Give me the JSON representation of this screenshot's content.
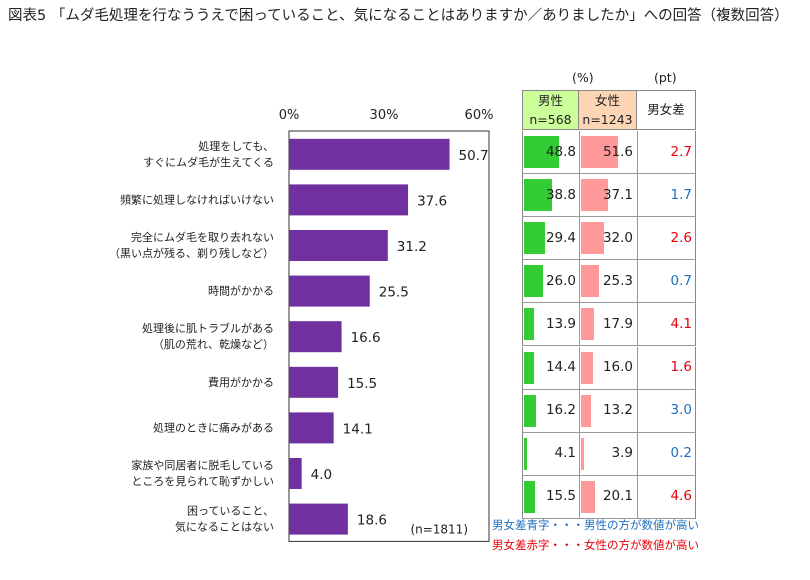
{
  "title": "図表5 「ムダ毛処理を行なううえで困っていること、気になることはありますか／ありましたか」への回答（複数回答）",
  "chart_data": [
    {
      "type": "bar",
      "orientation": "horizontal",
      "categories": [
        [
          "処理をしても、",
          "すぐにムダ毛が生えてくる"
        ],
        [
          "頻繁に処理しなければいけない"
        ],
        [
          "完全にムダ毛を取り去れない",
          "（黒い点が残る、剃り残しなど）"
        ],
        [
          "時間がかかる"
        ],
        [
          "処理後に肌トラブルがある",
          "（肌の荒れ、乾燥など）"
        ],
        [
          "費用がかかる"
        ],
        [
          "処理のときに痛みがある"
        ],
        [
          "家族や同居者に脱毛している",
          "ところを見られて恥ずかしい"
        ],
        [
          "困っていること、",
          "気になることはない"
        ]
      ],
      "values": [
        50.7,
        37.6,
        31.2,
        25.5,
        16.6,
        15.5,
        14.1,
        4.0,
        18.6
      ],
      "value_labels": [
        "50.7",
        "37.6",
        "31.2",
        "25.5",
        "16.6",
        "15.5",
        "14.1",
        "4.0",
        "18.6"
      ],
      "xlim": [
        0,
        60
      ],
      "ticks": [
        "0%",
        "30%",
        "60%"
      ],
      "note": "(n=1811)",
      "bar_color": "#7030a0",
      "grid": false
    },
    {
      "type": "table",
      "unit_pct": "(%)",
      "unit_pt": "(pt)",
      "columns": [
        {
          "name": "男性",
          "n": "n=568",
          "header_color": "#ccff99",
          "bar_color": "#33cc33"
        },
        {
          "name": "女性",
          "n": "n=1243",
          "header_color": "#fcd5b5",
          "bar_color": "#ff9999"
        },
        {
          "name": "男女差"
        }
      ],
      "male": [
        48.8,
        38.8,
        29.4,
        26.0,
        13.9,
        14.4,
        16.2,
        4.1,
        15.5
      ],
      "male_labels": [
        "48.8",
        "38.8",
        "29.4",
        "26.0",
        "13.9",
        "14.4",
        "16.2",
        "4.1",
        "15.5"
      ],
      "female": [
        51.6,
        37.1,
        32.0,
        25.3,
        17.9,
        16.0,
        13.2,
        3.9,
        20.1
      ],
      "female_labels": [
        "51.6",
        "37.1",
        "32.0",
        "25.3",
        "17.9",
        "16.0",
        "13.2",
        "3.9",
        "20.1"
      ],
      "diff": [
        "2.7",
        "1.7",
        "2.6",
        "0.7",
        "4.1",
        "1.6",
        "3.0",
        "0.2",
        "4.6"
      ],
      "diff_higher": [
        "female",
        "male",
        "female",
        "male",
        "female",
        "female",
        "male",
        "male",
        "female"
      ],
      "colors": {
        "male_higher": "#1f6fbf",
        "female_higher": "#e8000b"
      }
    }
  ],
  "legend": {
    "blue_text": "男女差青字・・・男性の方が数値が高い",
    "red_text": "男女差赤字・・・女性の方が数値が高い"
  }
}
